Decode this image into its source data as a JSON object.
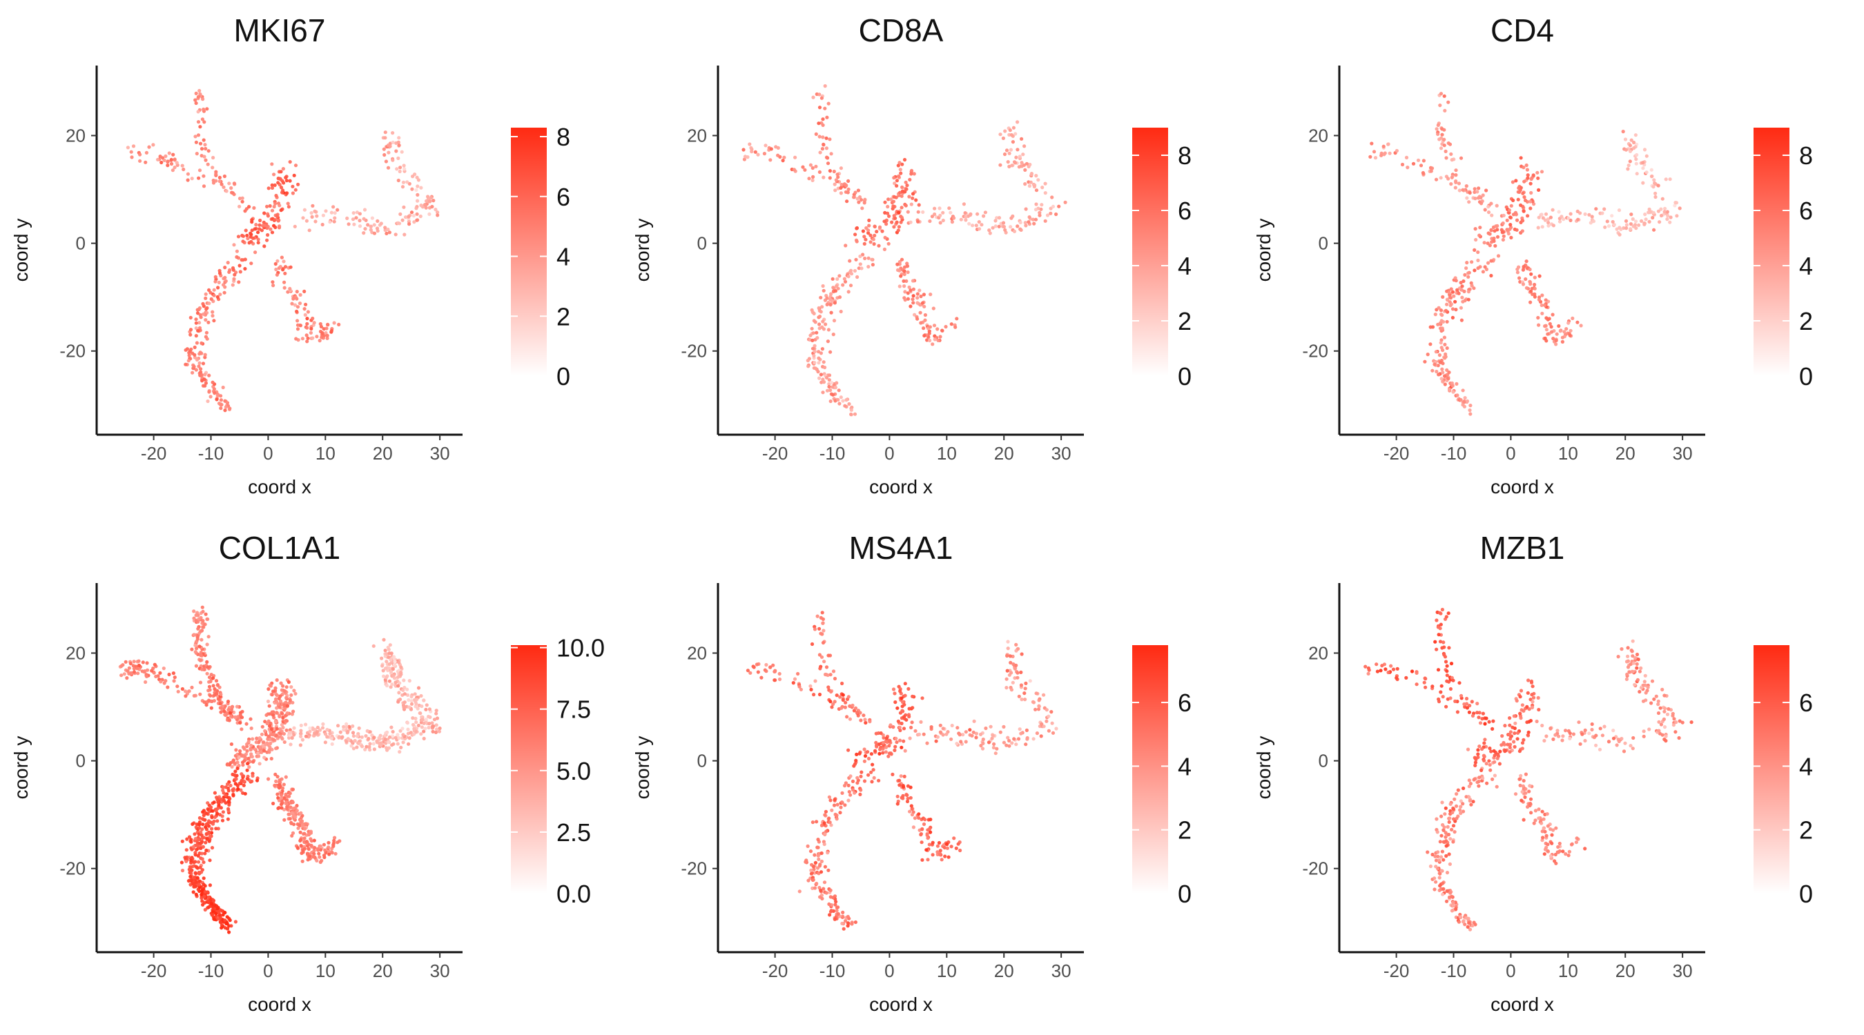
{
  "chart_data": [
    {
      "type": "scatter",
      "title": "MKI67",
      "xlabel": "coord x",
      "ylabel": "coord y",
      "xlim": [
        -29,
        33
      ],
      "ylim": [
        -34,
        33
      ],
      "xticks": [
        "-20",
        "-10",
        "0",
        "10",
        "20",
        "30"
      ],
      "xtick_values": [
        -20,
        -10,
        0,
        10,
        20,
        30
      ],
      "yticks": [
        "-20",
        "0",
        "20"
      ],
      "ytick_values": [
        -20,
        0,
        20
      ],
      "legend": {
        "position": "right",
        "min": 0,
        "max": 8.3,
        "ticks": [
          "0",
          "2",
          "4",
          "6",
          "8"
        ],
        "tick_values": [
          0,
          2,
          4,
          6,
          8
        ]
      },
      "color_low": "#ffffff",
      "color_high": "#ff2a12",
      "density": 1,
      "arm_expression": {
        "top_left": 4.8,
        "far_left": 4.6,
        "center": 6.2,
        "right": 3.3,
        "bottom_left": 5.0,
        "bottom_right": 5.0,
        "bottom_tail": 4.8
      },
      "grid": false
    },
    {
      "type": "scatter",
      "title": "CD8A",
      "xlabel": "coord x",
      "ylabel": "coord y",
      "xlim": [
        -29,
        33
      ],
      "ylim": [
        -34,
        33
      ],
      "xticks": [
        "-20",
        "-10",
        "0",
        "10",
        "20",
        "30"
      ],
      "xtick_values": [
        -20,
        -10,
        0,
        10,
        20,
        30
      ],
      "yticks": [
        "-20",
        "0",
        "20"
      ],
      "ytick_values": [
        -20,
        0,
        20
      ],
      "legend": {
        "position": "right",
        "min": 0,
        "max": 9,
        "ticks": [
          "0",
          "2",
          "4",
          "6",
          "8"
        ],
        "tick_values": [
          0,
          2,
          4,
          6,
          8
        ]
      },
      "color_low": "#ffffff",
      "color_high": "#ff2a12",
      "density": 1,
      "arm_expression": {
        "top_left": 5.2,
        "far_left": 4.8,
        "center": 5.8,
        "right": 3.8,
        "bottom_left": 4.5,
        "bottom_right": 5.2,
        "bottom_tail": 4.0
      },
      "grid": false
    },
    {
      "type": "scatter",
      "title": "CD4",
      "xlabel": "coord x",
      "ylabel": "coord y",
      "xlim": [
        -29,
        33
      ],
      "ylim": [
        -34,
        33
      ],
      "xticks": [
        "-20",
        "-10",
        "0",
        "10",
        "20",
        "30"
      ],
      "xtick_values": [
        -20,
        -10,
        0,
        10,
        20,
        30
      ],
      "yticks": [
        "-20",
        "0",
        "20"
      ],
      "ytick_values": [
        -20,
        0,
        20
      ],
      "legend": {
        "position": "right",
        "min": 0,
        "max": 9,
        "ticks": [
          "0",
          "2",
          "4",
          "6",
          "8"
        ],
        "tick_values": [
          0,
          2,
          4,
          6,
          8
        ]
      },
      "color_low": "#ffffff",
      "color_high": "#ff2a12",
      "density": 1,
      "arm_expression": {
        "top_left": 4.6,
        "far_left": 4.4,
        "center": 5.6,
        "right": 3.2,
        "bottom_left": 5.0,
        "bottom_right": 5.2,
        "bottom_tail": 4.6
      },
      "grid": false
    },
    {
      "type": "scatter",
      "title": "COL1A1",
      "xlabel": "coord x",
      "ylabel": "coord y",
      "xlim": [
        -29,
        33
      ],
      "ylim": [
        -34,
        33
      ],
      "xticks": [
        "-20",
        "-10",
        "0",
        "10",
        "20",
        "30"
      ],
      "xtick_values": [
        -20,
        -10,
        0,
        10,
        20,
        30
      ],
      "yticks": [
        "-20",
        "0",
        "20"
      ],
      "ytick_values": [
        -20,
        0,
        20
      ],
      "legend": {
        "position": "right",
        "min": 0,
        "max": 10.1,
        "ticks": [
          "0.0",
          "2.5",
          "5.0",
          "7.5",
          "10.0"
        ],
        "tick_values": [
          0,
          2.5,
          5,
          7.5,
          10
        ]
      },
      "color_low": "#ffffff",
      "color_high": "#ff2a12",
      "density": 2.4,
      "arm_expression": {
        "top_left": 6.0,
        "far_left": 6.2,
        "center": 5.6,
        "right": 3.6,
        "bottom_left": 8.2,
        "bottom_right": 6.2,
        "bottom_tail": 9.4
      },
      "grid": false
    },
    {
      "type": "scatter",
      "title": "MS4A1",
      "xlabel": "coord x",
      "ylabel": "coord y",
      "xlim": [
        -29,
        33
      ],
      "ylim": [
        -34,
        33
      ],
      "xticks": [
        "-20",
        "-10",
        "0",
        "10",
        "20",
        "30"
      ],
      "xtick_values": [
        -20,
        -10,
        0,
        10,
        20,
        30
      ],
      "yticks": [
        "-20",
        "0",
        "20"
      ],
      "ytick_values": [
        -20,
        0,
        20
      ],
      "legend": {
        "position": "right",
        "min": 0,
        "max": 7.8,
        "ticks": [
          "0",
          "2",
          "4",
          "6"
        ],
        "tick_values": [
          0,
          2,
          4,
          6
        ]
      },
      "color_low": "#ffffff",
      "color_high": "#ff2a12",
      "density": 1,
      "arm_expression": {
        "top_left": 5.2,
        "far_left": 5.0,
        "center": 5.6,
        "right": 3.8,
        "bottom_left": 5.0,
        "bottom_right": 5.6,
        "bottom_tail": 4.8
      },
      "grid": false
    },
    {
      "type": "scatter",
      "title": "MZB1",
      "xlabel": "coord x",
      "ylabel": "coord y",
      "xlim": [
        -29,
        33
      ],
      "ylim": [
        -34,
        33
      ],
      "xticks": [
        "-20",
        "-10",
        "0",
        "10",
        "20",
        "30"
      ],
      "xtick_values": [
        -20,
        -10,
        0,
        10,
        20,
        30
      ],
      "yticks": [
        "-20",
        "0",
        "20"
      ],
      "ytick_values": [
        -20,
        0,
        20
      ],
      "legend": {
        "position": "right",
        "min": 0,
        "max": 7.8,
        "ticks": [
          "0",
          "2",
          "4",
          "6"
        ],
        "tick_values": [
          0,
          2,
          4,
          6
        ]
      },
      "color_low": "#ffffff",
      "color_high": "#ff2a12",
      "density": 1,
      "arm_expression": {
        "top_left": 6.2,
        "far_left": 6.0,
        "center": 5.4,
        "right": 3.8,
        "bottom_left": 4.6,
        "bottom_right": 4.4,
        "bottom_tail": 4.2
      },
      "grid": false
    }
  ]
}
